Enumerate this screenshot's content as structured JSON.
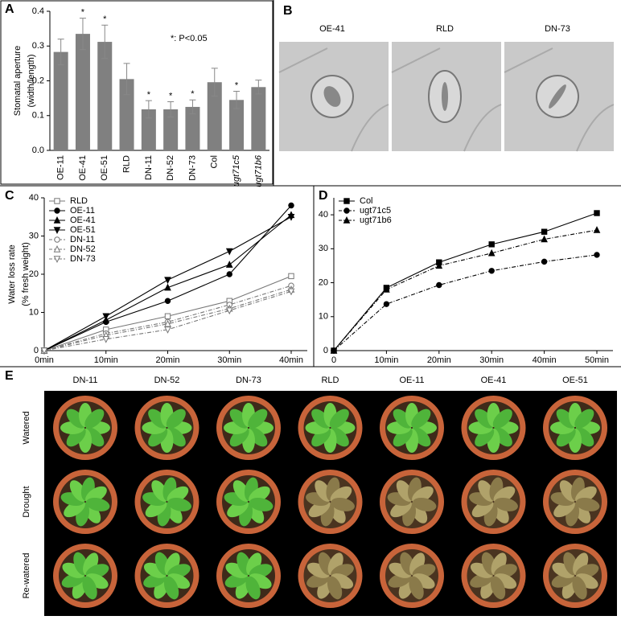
{
  "chart_data": [
    {
      "type": "bar",
      "panel": "A",
      "ylabel": [
        "Stomatal aperture",
        "(width/length)"
      ],
      "annotation": "*: P<0.05",
      "categories": [
        "OE-11",
        "OE-41",
        "OE-51",
        "RLD",
        "DN-11",
        "DN-52",
        "DN-73",
        "Col",
        "ugt71c5",
        "ugt71b6"
      ],
      "values": [
        0.283,
        0.335,
        0.312,
        0.205,
        0.118,
        0.118,
        0.125,
        0.196,
        0.145,
        0.182
      ],
      "errors": [
        0.037,
        0.045,
        0.048,
        0.045,
        0.025,
        0.022,
        0.02,
        0.04,
        0.025,
        0.02
      ],
      "significance": [
        null,
        "*",
        "*",
        null,
        "*",
        "*",
        "*",
        null,
        "*",
        null
      ],
      "color": "#808080",
      "ylim": [
        0,
        0.4
      ],
      "yticks": [
        {
          "value": 0,
          "label": "0.0"
        },
        0.1,
        0.2,
        0.3,
        0.4
      ]
    },
    {
      "type": "line",
      "panel": "C",
      "ylabel": [
        "Water loss rate",
        "(% fresh weight)"
      ],
      "categories": [
        "0min",
        "10min",
        "20min",
        "30min",
        "40min"
      ],
      "ylim": [
        0,
        40
      ],
      "yticks": [
        0,
        10,
        20,
        30,
        40
      ],
      "legend": "top-left",
      "series": [
        {
          "name": "RLD",
          "color": "#777777",
          "marker": "square",
          "filled": false,
          "dashed": false,
          "values": [
            0,
            5.5,
            9,
            13,
            19.5
          ]
        },
        {
          "name": "OE-11",
          "color": "#000000",
          "marker": "circle",
          "filled": true,
          "dashed": false,
          "values": [
            0,
            7.5,
            13,
            20,
            38
          ]
        },
        {
          "name": "OE-41",
          "color": "#000000",
          "marker": "triangle-up",
          "filled": true,
          "dashed": false,
          "values": [
            0,
            8,
            16.5,
            22.5,
            35.5
          ]
        },
        {
          "name": "OE-51",
          "color": "#000000",
          "marker": "triangle-down",
          "filled": true,
          "dashed": false,
          "values": [
            0,
            9,
            18.5,
            26,
            35
          ]
        },
        {
          "name": "DN-11",
          "color": "#777777",
          "marker": "circle",
          "filled": false,
          "dashed": true,
          "values": [
            0,
            4.5,
            7.5,
            12,
            17
          ]
        },
        {
          "name": "DN-52",
          "color": "#777777",
          "marker": "triangle-up",
          "filled": false,
          "dashed": true,
          "values": [
            0,
            4,
            7,
            11,
            16
          ]
        },
        {
          "name": "DN-73",
          "color": "#777777",
          "marker": "triangle-down",
          "filled": false,
          "dashed": true,
          "values": [
            0,
            3,
            5.5,
            10.5,
            15.5
          ]
        }
      ]
    },
    {
      "type": "line",
      "panel": "D",
      "categories": [
        "0",
        "10min",
        "20min",
        "30min",
        "40min",
        "50min"
      ],
      "ylim": [
        0,
        45
      ],
      "yticks": [
        0,
        10,
        20,
        30,
        40
      ],
      "legend": "top-left",
      "series": [
        {
          "name": "Col",
          "color": "#000000",
          "marker": "square",
          "filled": true,
          "dashed": false,
          "values": [
            0,
            18.5,
            26,
            31.3,
            35,
            40.5
          ]
        },
        {
          "name": "ugt71c5",
          "color": "#000000",
          "marker": "circle",
          "filled": true,
          "dashed": true,
          "values": [
            0,
            13.7,
            19.3,
            23.5,
            26.2,
            28.2
          ]
        },
        {
          "name": "ugt71b6",
          "color": "#000000",
          "marker": "triangle-up",
          "filled": true,
          "dashed": true,
          "values": [
            0,
            18,
            25,
            28.7,
            32.8,
            35.5
          ]
        }
      ]
    }
  ],
  "images": {
    "panel": "B",
    "labels": [
      "OE-41",
      "RLD",
      "DN-73"
    ]
  },
  "photo_grid": {
    "panel": "E",
    "columns": [
      "DN-11",
      "DN-52",
      "DN-73",
      "RLD",
      "OE-11",
      "OE-41",
      "OE-51"
    ],
    "rows": [
      "Watered",
      "Drought",
      "Re-watered"
    ]
  }
}
